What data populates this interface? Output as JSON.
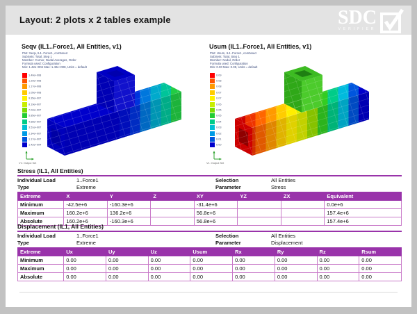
{
  "page": {
    "title": "Layout: 2 plots x 2 tables example"
  },
  "logo": {
    "text": "SDC",
    "subtext": "VERIFIER"
  },
  "colors": {
    "accent_purple": "#9933AA",
    "table_border": "#C878C8",
    "header_band": "#e3e3e3",
    "caption_text": "#3a4a7c"
  },
  "legend_colors": [
    "#FF0000",
    "#FF5500",
    "#FF9900",
    "#FFCC00",
    "#FFF200",
    "#C8EE00",
    "#7CDD00",
    "#22CC33",
    "#00CC88",
    "#00BFD4",
    "#009BE6",
    "#0055DD",
    "#0000CC"
  ],
  "plots": [
    {
      "title": "Seqv (IL1..Force1, All Entities, v1)",
      "captions": [
        "Plot: Seqv, IL1..Force1, combined",
        "SubSets: Total, Step 1",
        "Member: Corner, Nodal Averages, Order",
        "Formula used: Configuration",
        "Min: 1.42e+004  Max: 1.40e+008, Units = default"
      ],
      "legend_labels": [
        "1.40e+008",
        "1.29e+008",
        "1.17e+008",
        "1.05e+008",
        "9.35e+007",
        "8.19e+007",
        "7.02e+007",
        "5.85e+007",
        "4.68e+007",
        "3.51e+007",
        "2.34e+007",
        "1.17e+007",
        "1.42e+004"
      ],
      "triad_label": "V1: Output Set",
      "model": {
        "bands": [
          "#0000CC",
          "#0000CC",
          "#0000CC",
          "#0000CC",
          "#0000CC",
          "#0000CC",
          "#0000CC",
          "#0011D4",
          "#0033DD",
          "#0077DD",
          "#00AACC",
          "#00C49A",
          "#22CC44"
        ],
        "column_left": "#0000B4",
        "column_front": "#1111CC",
        "column_top": "#0000C4",
        "column_top_hole": "#0000AE",
        "end_face": "#0000BB",
        "end_hole": "#0000A4"
      }
    },
    {
      "title": "Usum (IL1..Force1, All Entities, v1)",
      "captions": [
        "Plot: Usum, IL1..Force1, combined",
        "SubSets: Total, Step 1",
        "Member: Nodal, Order",
        "Formula used: Configuration",
        "Min: 0.00  Max: 0.09, Units = default"
      ],
      "legend_labels": [
        "0.09",
        "0.08",
        "0.08",
        "0.07",
        "0.07",
        "0.06",
        "0.05",
        "0.05",
        "0.04",
        "0.03",
        "0.02",
        "0.01",
        "0.00"
      ],
      "triad_label": "V1: Output Set",
      "model": {
        "bands": [
          "#CC0000",
          "#EE3300",
          "#FF6600",
          "#FF9900",
          "#FFCC00",
          "#FFEE00",
          "#DDEE00",
          "#99DD00",
          "#33CC22",
          "#00CC88",
          "#00BBDD",
          "#0055DD",
          "#0000CC"
        ],
        "column_left": "#2FA818",
        "column_front": "#4CCB2C",
        "column_top": "#3DBB22",
        "column_top_hole": "#1E7F12",
        "end_face": "#CC0000",
        "end_hole": "#8F0000"
      }
    }
  ],
  "tables": [
    {
      "title": "Stress (IL1, All Entities)",
      "info": {
        "label1": "Individual Load",
        "value1": "1..Force1",
        "label2": "Selection",
        "value2": "All Entities",
        "label3": "Type",
        "value3": "Extreme",
        "label4": "Parameter",
        "value4": "Stress"
      },
      "headers": [
        "Extreme",
        "X",
        "Y",
        "Z",
        "XY",
        "YZ",
        "ZX",
        "Equivalent"
      ],
      "rows": [
        [
          "Minimum",
          "-42.5e+6",
          "-160.3e+6",
          "",
          "-31.4e+6",
          "",
          "",
          "0.0e+6"
        ],
        [
          "Maximum",
          "160.2e+6",
          "136.2e+6",
          "",
          "56.8e+6",
          "",
          "",
          "157.4e+6"
        ],
        [
          "Absolute",
          "160.2e+6",
          "-160.3e+6",
          "",
          "56.8e+6",
          "",
          "",
          "157.4e+6"
        ]
      ]
    },
    {
      "title": "Displacement (IL1, All Entities)",
      "info": {
        "label1": "Individual Load",
        "value1": "1..Force1",
        "label2": "Selection",
        "value2": "All Entities",
        "label3": "Type",
        "value3": "Extreme",
        "label4": "Parameter",
        "value4": "Displacement"
      },
      "headers": [
        "Extreme",
        "Ux",
        "Uy",
        "Uz",
        "Usum",
        "Rx",
        "Ry",
        "Rz",
        "Rsum"
      ],
      "rows": [
        [
          "Minimum",
          "0.00",
          "0.00",
          "0.00",
          "0.00",
          "0.00",
          "0.00",
          "0.00",
          "0.00"
        ],
        [
          "Maximum",
          "0.00",
          "0.00",
          "0.00",
          "0.00",
          "0.00",
          "0.00",
          "0.00",
          "0.00"
        ],
        [
          "Absolute",
          "0.00",
          "0.00",
          "0.00",
          "0.00",
          "0.00",
          "0.00",
          "0.00",
          "0.00"
        ]
      ]
    }
  ]
}
